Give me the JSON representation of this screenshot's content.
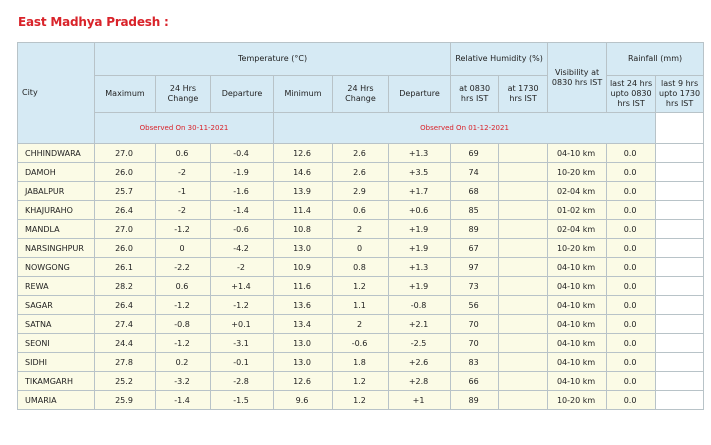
{
  "header": {
    "title": "East Madhya Pradesh :"
  },
  "table": {
    "headers": {
      "city": "City",
      "temperature": "Temperature (°C)",
      "humidity": "Relative Humidity (%)",
      "visibility": "Visibility at 0830 hrs IST",
      "rainfall": "Rainfall (mm)",
      "columns": [
        "Maximum",
        "24 Hrs Change",
        "Departure",
        "Minimum",
        "24 Hrs Change",
        "Departure",
        "at 0830 hrs IST",
        "at 1730 hrs IST",
        "last 24 hrs upto 0830 hrs IST",
        "last 9 hrs upto 1730 hrs IST"
      ],
      "observed": [
        "Observed On 30-11-2021",
        "Observed On 01-12-2021"
      ]
    },
    "rows": [
      [
        "CHHINDWARA",
        "27.0",
        "0.6",
        "-0.4",
        "12.6",
        "2.6",
        "+1.3",
        "69",
        "",
        "04-10 km",
        "0.0",
        ""
      ],
      [
        "DAMOH",
        "26.0",
        "-2",
        "-1.9",
        "14.6",
        "2.6",
        "+3.5",
        "74",
        "",
        "10-20 km",
        "0.0",
        ""
      ],
      [
        "JABALPUR",
        "25.7",
        "-1",
        "-1.6",
        "13.9",
        "2.9",
        "+1.7",
        "68",
        "",
        "02-04 km",
        "0.0",
        ""
      ],
      [
        "KHAJURAHO",
        "26.4",
        "-2",
        "-1.4",
        "11.4",
        "0.6",
        "+0.6",
        "85",
        "",
        "01-02 km",
        "0.0",
        ""
      ],
      [
        "MANDLA",
        "27.0",
        "-1.2",
        "-0.6",
        "10.8",
        "2",
        "+1.9",
        "89",
        "",
        "02-04 km",
        "0.0",
        ""
      ],
      [
        "NARSINGHPUR",
        "26.0",
        "0",
        "-4.2",
        "13.0",
        "0",
        "+1.9",
        "67",
        "",
        "10-20 km",
        "0.0",
        ""
      ],
      [
        "NOWGONG",
        "26.1",
        "-2.2",
        "-2",
        "10.9",
        "0.8",
        "+1.3",
        "97",
        "",
        "04-10 km",
        "0.0",
        ""
      ],
      [
        "REWA",
        "28.2",
        "0.6",
        "+1.4",
        "11.6",
        "1.2",
        "+1.9",
        "73",
        "",
        "04-10 km",
        "0.0",
        ""
      ],
      [
        "SAGAR",
        "26.4",
        "-1.2",
        "-1.2",
        "13.6",
        "1.1",
        "-0.8",
        "56",
        "",
        "04-10 km",
        "0.0",
        ""
      ],
      [
        "SATNA",
        "27.4",
        "-0.8",
        "+0.1",
        "13.4",
        "2",
        "+2.1",
        "70",
        "",
        "04-10 km",
        "0.0",
        ""
      ],
      [
        "SEONI",
        "24.4",
        "-1.2",
        "-3.1",
        "13.0",
        "-0.6",
        "-2.5",
        "70",
        "",
        "04-10 km",
        "0.0",
        ""
      ],
      [
        "SIDHI",
        "27.8",
        "0.2",
        "-0.1",
        "13.0",
        "1.8",
        "+2.6",
        "83",
        "",
        "04-10 km",
        "0.0",
        ""
      ],
      [
        "TIKAMGARH",
        "25.2",
        "-3.2",
        "-2.8",
        "12.6",
        "1.2",
        "+2.8",
        "66",
        "",
        "04-10 km",
        "0.0",
        ""
      ],
      [
        "UMARIA",
        "25.9",
        "-1.4",
        "-1.5",
        "9.6",
        "1.2",
        "+1",
        "89",
        "",
        "10-20 km",
        "0.0",
        ""
      ]
    ]
  }
}
